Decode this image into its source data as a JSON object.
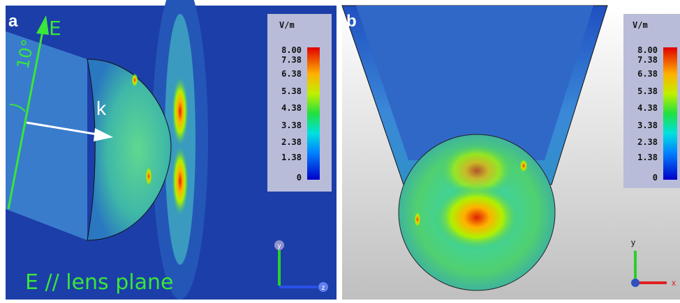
{
  "panels": [
    {
      "label": "a",
      "unit": "V/m",
      "scale": [
        "8.00",
        "7.38",
        "6.38",
        "5.38",
        "4.38",
        "3.38",
        "2.38",
        "1.38",
        "0"
      ],
      "annotations": {
        "e_field": "E",
        "angle": "10°",
        "wave_vector": "k",
        "polarization": "E // lens plane"
      },
      "axes": [
        "y",
        "z"
      ]
    },
    {
      "label": "b",
      "unit": "V/m",
      "scale": [
        "8.00",
        "7.38",
        "6.38",
        "5.38",
        "4.38",
        "3.38",
        "2.38",
        "1.38",
        "0"
      ],
      "axes": [
        "y",
        "x"
      ]
    }
  ]
}
